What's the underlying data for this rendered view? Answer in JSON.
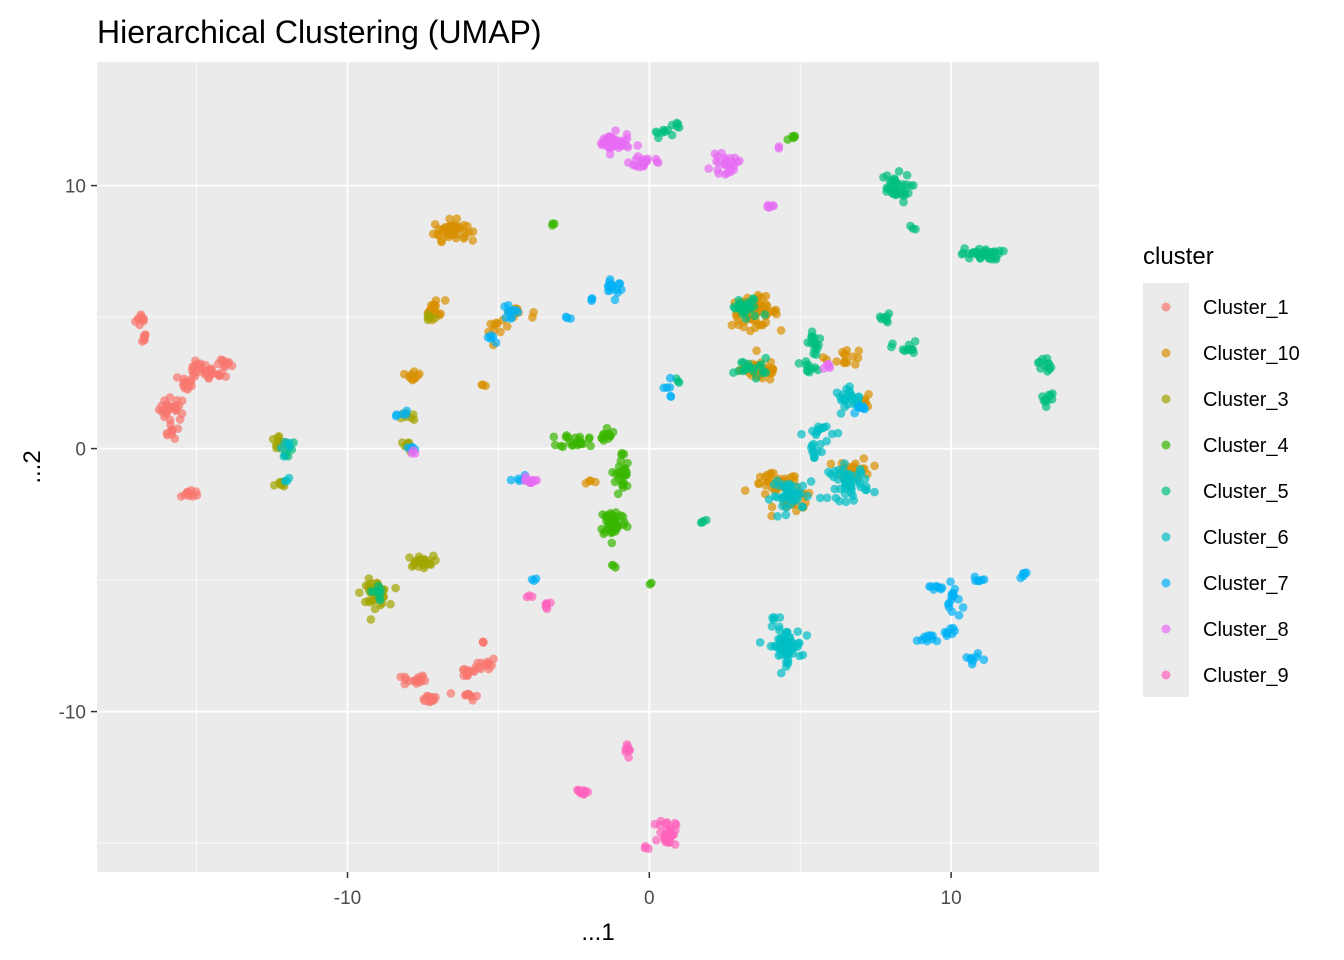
{
  "chart_data": {
    "type": "scatter",
    "title": "Hierarchical Clustering (UMAP)",
    "xlabel": "...1",
    "ylabel": "...2",
    "xlim": [
      -18.3,
      14.9
    ],
    "ylim": [
      -16.1,
      14.7
    ],
    "x_ticks": [
      -10,
      0,
      10
    ],
    "x_tick_labels": [
      "-10",
      "0",
      "10"
    ],
    "y_ticks": [
      -10,
      0,
      10
    ],
    "y_tick_labels": [
      "-10",
      "0",
      "10"
    ],
    "grid": true,
    "legend": {
      "title": "cluster",
      "position": "right"
    },
    "series": [
      {
        "name": "Cluster_1",
        "color": "#F8766D",
        "clusters": [
          [
            -16.8,
            4.9,
            0.2,
            0.25,
            10
          ],
          [
            -16.8,
            4.2,
            0.15,
            0.2,
            6
          ],
          [
            -15.8,
            1.5,
            0.4,
            0.4,
            25
          ],
          [
            -15.8,
            0.6,
            0.2,
            0.2,
            8
          ],
          [
            -15.3,
            2.5,
            0.3,
            0.3,
            12
          ],
          [
            -14.9,
            3.0,
            0.4,
            0.25,
            18
          ],
          [
            -14.5,
            2.8,
            0.4,
            0.2,
            12
          ],
          [
            -14.0,
            3.2,
            0.3,
            0.15,
            10
          ],
          [
            -15.2,
            -1.7,
            0.3,
            0.15,
            10
          ],
          [
            -7.8,
            -8.8,
            0.35,
            0.2,
            18
          ],
          [
            -7.3,
            -9.5,
            0.3,
            0.15,
            15
          ],
          [
            -6.0,
            -8.5,
            0.3,
            0.2,
            12
          ],
          [
            -5.4,
            -8.2,
            0.3,
            0.25,
            12
          ],
          [
            -5.5,
            -7.3,
            0.1,
            0.15,
            3
          ],
          [
            -6.0,
            -9.4,
            0.3,
            0.15,
            10
          ]
        ]
      },
      {
        "name": "Cluster_10",
        "color": "#D89000",
        "clusters": [
          [
            -6.6,
            8.3,
            0.5,
            0.35,
            45
          ],
          [
            -7.1,
            5.3,
            0.3,
            0.35,
            18
          ],
          [
            -7.8,
            2.8,
            0.2,
            0.25,
            10
          ],
          [
            -5.0,
            4.5,
            0.3,
            0.3,
            10
          ],
          [
            -4.5,
            5.2,
            0.3,
            0.3,
            8
          ],
          [
            -5.5,
            2.4,
            0.1,
            0.1,
            3
          ],
          [
            3.5,
            5.2,
            0.7,
            0.5,
            65
          ],
          [
            3.7,
            3.0,
            0.6,
            0.4,
            40
          ],
          [
            4.2,
            -1.4,
            0.7,
            0.4,
            40
          ],
          [
            4.8,
            -2.0,
            0.6,
            0.4,
            30
          ],
          [
            6.8,
            -0.8,
            0.5,
            0.4,
            25
          ],
          [
            6.5,
            3.5,
            0.6,
            0.3,
            15
          ],
          [
            7.2,
            1.8,
            0.2,
            0.2,
            8
          ],
          [
            -2.0,
            -1.3,
            0.3,
            0.1,
            4
          ],
          [
            -3.8,
            5.1,
            0.1,
            0.1,
            2
          ]
        ]
      },
      {
        "name": "Cluster_3",
        "color": "#A3A500",
        "clusters": [
          [
            -9.1,
            -5.5,
            0.4,
            0.45,
            45
          ],
          [
            -7.6,
            -4.3,
            0.4,
            0.2,
            25
          ],
          [
            -12.3,
            0.2,
            0.3,
            0.3,
            12
          ],
          [
            -12.2,
            -1.4,
            0.2,
            0.15,
            8
          ],
          [
            -8.0,
            1.2,
            0.2,
            0.2,
            8
          ],
          [
            -8.0,
            0.1,
            0.2,
            0.2,
            8
          ],
          [
            -7.3,
            5.0,
            0.2,
            0.2,
            5
          ]
        ]
      },
      {
        "name": "Cluster_4",
        "color": "#39B600",
        "clusters": [
          [
            -1.2,
            -2.8,
            0.4,
            0.5,
            50
          ],
          [
            -0.9,
            -1.0,
            0.2,
            0.8,
            30
          ],
          [
            -2.3,
            0.3,
            0.6,
            0.25,
            25
          ],
          [
            -1.4,
            0.7,
            0.2,
            0.3,
            10
          ],
          [
            -1.2,
            -4.5,
            0.1,
            0.1,
            3
          ],
          [
            -3.2,
            8.5,
            0.1,
            0.1,
            3
          ],
          [
            0.0,
            -5.1,
            0.1,
            0.1,
            2
          ],
          [
            4.7,
            11.8,
            0.2,
            0.15,
            5
          ]
        ]
      },
      {
        "name": "Cluster_5",
        "color": "#00BF7D",
        "clusters": [
          [
            8.1,
            9.9,
            0.5,
            0.5,
            35
          ],
          [
            11.0,
            7.4,
            0.6,
            0.2,
            35
          ],
          [
            13.1,
            3.2,
            0.2,
            0.3,
            12
          ],
          [
            13.2,
            1.9,
            0.2,
            0.25,
            10
          ],
          [
            8.5,
            3.8,
            0.4,
            0.25,
            12
          ],
          [
            7.8,
            4.9,
            0.3,
            0.2,
            8
          ],
          [
            5.5,
            4.0,
            0.2,
            0.5,
            15
          ],
          [
            5.3,
            3.0,
            0.3,
            0.3,
            10
          ],
          [
            3.2,
            5.3,
            0.5,
            0.4,
            25
          ],
          [
            3.4,
            3.1,
            0.5,
            0.3,
            20
          ],
          [
            0.4,
            12.0,
            0.3,
            0.15,
            8
          ],
          [
            0.9,
            12.3,
            0.15,
            0.15,
            5
          ],
          [
            1.8,
            -2.8,
            0.15,
            0.15,
            4
          ],
          [
            1.0,
            2.6,
            0.1,
            0.1,
            3
          ],
          [
            8.7,
            8.4,
            0.15,
            0.15,
            3
          ],
          [
            -11.9,
            0.0,
            0.2,
            0.25,
            6
          ],
          [
            -9.0,
            -5.5,
            0.2,
            0.3,
            8
          ]
        ]
      },
      {
        "name": "Cluster_6",
        "color": "#00BFC4",
        "clusters": [
          [
            4.5,
            -7.5,
            0.5,
            0.6,
            60
          ],
          [
            4.7,
            -1.8,
            0.6,
            0.5,
            40
          ],
          [
            6.6,
            -1.3,
            0.6,
            0.6,
            50
          ],
          [
            6.7,
            1.9,
            0.5,
            0.35,
            25
          ],
          [
            5.7,
            0.6,
            0.5,
            0.4,
            15
          ],
          [
            5.5,
            -0.2,
            0.2,
            0.5,
            10
          ],
          [
            4.1,
            -6.4,
            0.15,
            0.1,
            4
          ],
          [
            -12.1,
            0.1,
            0.2,
            0.3,
            6
          ],
          [
            -12.0,
            -1.2,
            0.1,
            0.1,
            3
          ]
        ]
      },
      {
        "name": "Cluster_7",
        "color": "#00B0F6",
        "clusters": [
          [
            9.2,
            -7.2,
            0.3,
            0.15,
            10
          ],
          [
            9.9,
            -7.0,
            0.2,
            0.3,
            8
          ],
          [
            10.1,
            -5.8,
            0.2,
            0.6,
            15
          ],
          [
            9.5,
            -5.3,
            0.4,
            0.1,
            8
          ],
          [
            10.9,
            -5.0,
            0.2,
            0.2,
            6
          ],
          [
            10.7,
            -8.0,
            0.3,
            0.15,
            8
          ],
          [
            12.4,
            -4.8,
            0.15,
            0.15,
            5
          ],
          [
            -1.2,
            6.2,
            0.3,
            0.4,
            15
          ],
          [
            -1.9,
            5.7,
            0.1,
            0.1,
            3
          ],
          [
            -2.7,
            5.0,
            0.1,
            0.1,
            3
          ],
          [
            -4.6,
            5.0,
            0.3,
            0.3,
            10
          ],
          [
            -5.2,
            4.3,
            0.2,
            0.2,
            5
          ],
          [
            -8.1,
            1.3,
            0.2,
            0.2,
            5
          ],
          [
            -7.8,
            0.0,
            0.2,
            0.15,
            5
          ],
          [
            -4.3,
            -1.2,
            0.2,
            0.15,
            5
          ],
          [
            -3.8,
            -5.0,
            0.1,
            0.1,
            3
          ],
          [
            0.6,
            2.2,
            0.2,
            0.3,
            6
          ],
          [
            7.0,
            1.5,
            0.3,
            0.2,
            8
          ]
        ]
      },
      {
        "name": "Cluster_8",
        "color": "#E76BF3",
        "clusters": [
          [
            -1.2,
            11.6,
            0.5,
            0.35,
            45
          ],
          [
            -0.2,
            10.9,
            0.4,
            0.25,
            20
          ],
          [
            2.5,
            10.8,
            0.4,
            0.3,
            25
          ],
          [
            4.0,
            9.2,
            0.15,
            0.1,
            5
          ],
          [
            -3.9,
            -1.2,
            0.3,
            0.15,
            10
          ],
          [
            4.3,
            11.5,
            0.1,
            0.1,
            2
          ],
          [
            5.9,
            3.1,
            0.2,
            0.15,
            5
          ],
          [
            -7.8,
            -0.1,
            0.1,
            0.1,
            3
          ]
        ]
      },
      {
        "name": "Cluster_9",
        "color": "#FF62BC",
        "clusters": [
          [
            0.6,
            -14.6,
            0.25,
            0.45,
            30
          ],
          [
            -2.2,
            -13.0,
            0.2,
            0.2,
            10
          ],
          [
            -0.7,
            -11.5,
            0.2,
            0.3,
            8
          ],
          [
            -0.1,
            -15.2,
            0.1,
            0.1,
            3
          ],
          [
            -3.4,
            -5.9,
            0.2,
            0.15,
            6
          ],
          [
            -4.0,
            -5.6,
            0.1,
            0.1,
            3
          ]
        ]
      }
    ]
  }
}
